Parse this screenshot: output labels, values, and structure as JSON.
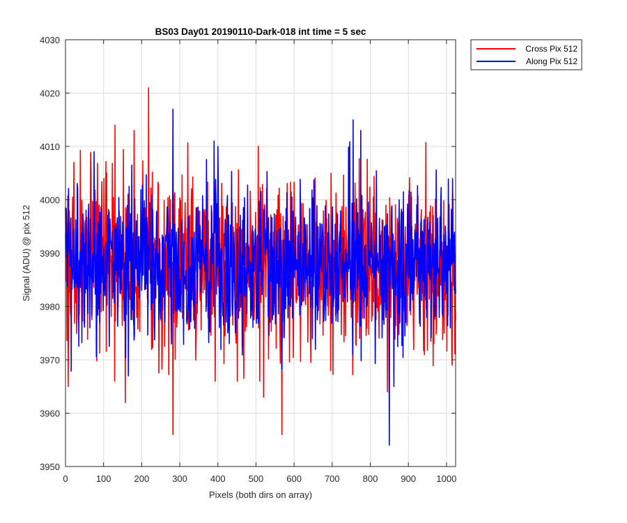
{
  "chart_data": {
    "type": "line",
    "title": "BS03 Day01 20190110-Dark-018 int time = 5 sec",
    "xlabel": "Pixels (both dirs on array)",
    "ylabel": "Signal (ADU) @ pix 512",
    "xlim": [
      0,
      1024
    ],
    "ylim": [
      3950,
      4030
    ],
    "xticks": [
      0,
      100,
      200,
      300,
      400,
      500,
      600,
      700,
      800,
      900,
      1000
    ],
    "yticks": [
      3950,
      3960,
      3970,
      3980,
      3990,
      4000,
      4010,
      4020,
      4030
    ],
    "grid": true,
    "legend_position": "outside-top-right",
    "series": [
      {
        "name": "Cross Pix 512",
        "color": "#ff0000",
        "mean": 3988,
        "std": 8,
        "seed": 17,
        "peaks": [
          {
            "x": 7,
            "y": 3965
          },
          {
            "x": 22,
            "y": 4007
          },
          {
            "x": 130,
            "y": 4014
          },
          {
            "x": 157,
            "y": 3962
          },
          {
            "x": 180,
            "y": 4013
          },
          {
            "x": 218,
            "y": 4021
          },
          {
            "x": 282,
            "y": 3956
          },
          {
            "x": 520,
            "y": 3963
          },
          {
            "x": 568,
            "y": 3956
          },
          {
            "x": 845,
            "y": 3964
          },
          {
            "x": 1015,
            "y": 3969
          }
        ]
      },
      {
        "name": "Along Pix 512",
        "color": "#0000ff",
        "mean": 3988,
        "std": 7.5,
        "seed": 42,
        "peaks": [
          {
            "x": 75,
            "y": 4009
          },
          {
            "x": 165,
            "y": 3967
          },
          {
            "x": 282,
            "y": 4017
          },
          {
            "x": 400,
            "y": 4010
          },
          {
            "x": 755,
            "y": 4015
          },
          {
            "x": 775,
            "y": 4013
          },
          {
            "x": 850,
            "y": 3954
          },
          {
            "x": 862,
            "y": 3965
          },
          {
            "x": 1010,
            "y": 3976
          }
        ]
      }
    ]
  }
}
